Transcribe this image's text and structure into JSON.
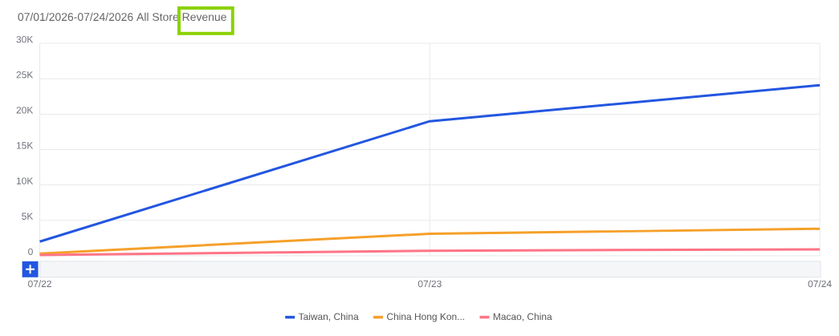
{
  "chart_data": {
    "type": "line",
    "title": "07/01/2026-07/24/2026 All Store Revenue",
    "categories": [
      "07/22",
      "07/23",
      "07/24"
    ],
    "series": [
      {
        "name": "Taiwan, China",
        "color": "#2356e0",
        "values": [
          2000,
          19000,
          24100
        ]
      },
      {
        "name": "China Hong Kon...",
        "color": "#f5a02a",
        "values": [
          300,
          3100,
          3800
        ]
      },
      {
        "name": "Macao, China",
        "color": "#ff7486",
        "values": [
          100,
          700,
          900
        ]
      }
    ],
    "ylim": [
      0,
      30000
    ],
    "yticks": [
      0,
      {
        "value": 5000,
        "label": "5K"
      },
      {
        "value": 10000,
        "label": "10K"
      },
      {
        "value": 15000,
        "label": "15K"
      },
      {
        "value": 20000,
        "label": "20K"
      },
      {
        "value": 25000,
        "label": "25K"
      },
      {
        "value": 30000,
        "label": "30K"
      }
    ],
    "grid": true,
    "legend": "bottom",
    "marker": "none",
    "line_style": "solid"
  }
}
